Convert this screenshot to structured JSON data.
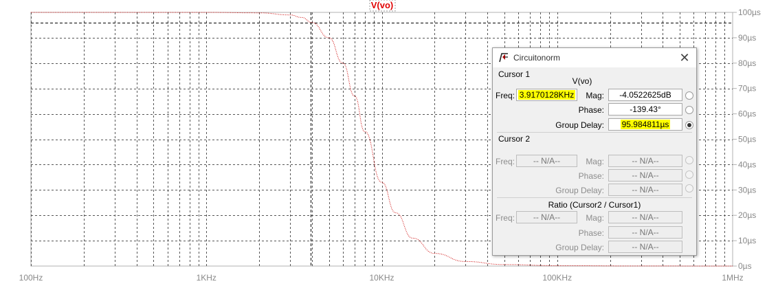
{
  "chart_data": {
    "type": "line",
    "title": "V(vo)",
    "x_scale": "log",
    "xlim": [
      "100Hz",
      "1MHz"
    ],
    "x_tick_labels": [
      "100Hz",
      "1KHz",
      "10KHz",
      "100KHz",
      "1MHz"
    ],
    "y_tick_labels": [
      "0µs",
      "10µs",
      "20µs",
      "30µs",
      "40µs",
      "50µs",
      "60µs",
      "70µs",
      "80µs",
      "90µs",
      "100µs"
    ],
    "ylim": [
      0,
      100
    ],
    "y_unit": "µs",
    "grid": true,
    "series": [
      {
        "name": "V(vo)",
        "color": "#cc0000",
        "x_hz": [
          100,
          200,
          500,
          1000,
          2000,
          3000,
          3500,
          4000,
          5000,
          6000,
          7000,
          8000,
          10000,
          12000,
          15000,
          20000,
          30000,
          50000,
          100000,
          300000,
          1000000
        ],
        "values": [
          100,
          100,
          100,
          100,
          99.8,
          99,
          98,
          96,
          90,
          80,
          67,
          53,
          33,
          21,
          11,
          5,
          1.8,
          0.6,
          0.15,
          0.02,
          0
        ]
      }
    ],
    "cursor_x_hz": 3917.0128,
    "cursor_y": 95.98
  },
  "dialog": {
    "title": "Circuitonorm",
    "cursor1_label": "Cursor 1",
    "trace_name": "V(vo)",
    "freq_label": "Freq:",
    "mag_label": "Mag:",
    "phase_label": "Phase:",
    "group_delay_label": "Group Delay:",
    "cursor1_freq": "3.9170128KHz",
    "cursor1_mag": "-4.0522625dB",
    "cursor1_phase": "-139.43°",
    "cursor1_group_delay": "95.984811µs",
    "cursor2_label": "Cursor 2",
    "cursor2_freq": "-- N/A--",
    "cursor2_mag": "-- N/A--",
    "cursor2_phase": "-- N/A--",
    "cursor2_group_delay": "-- N/A--",
    "ratio_label": "Ratio (Cursor2 / Cursor1)",
    "ratio_freq": "-- N/A--",
    "ratio_mag": "-- N/A--",
    "ratio_phase": "-- N/A--",
    "ratio_group_delay": "-- N/A--",
    "selected_radio": "group_delay",
    "highlight_color": "#ffff00"
  }
}
